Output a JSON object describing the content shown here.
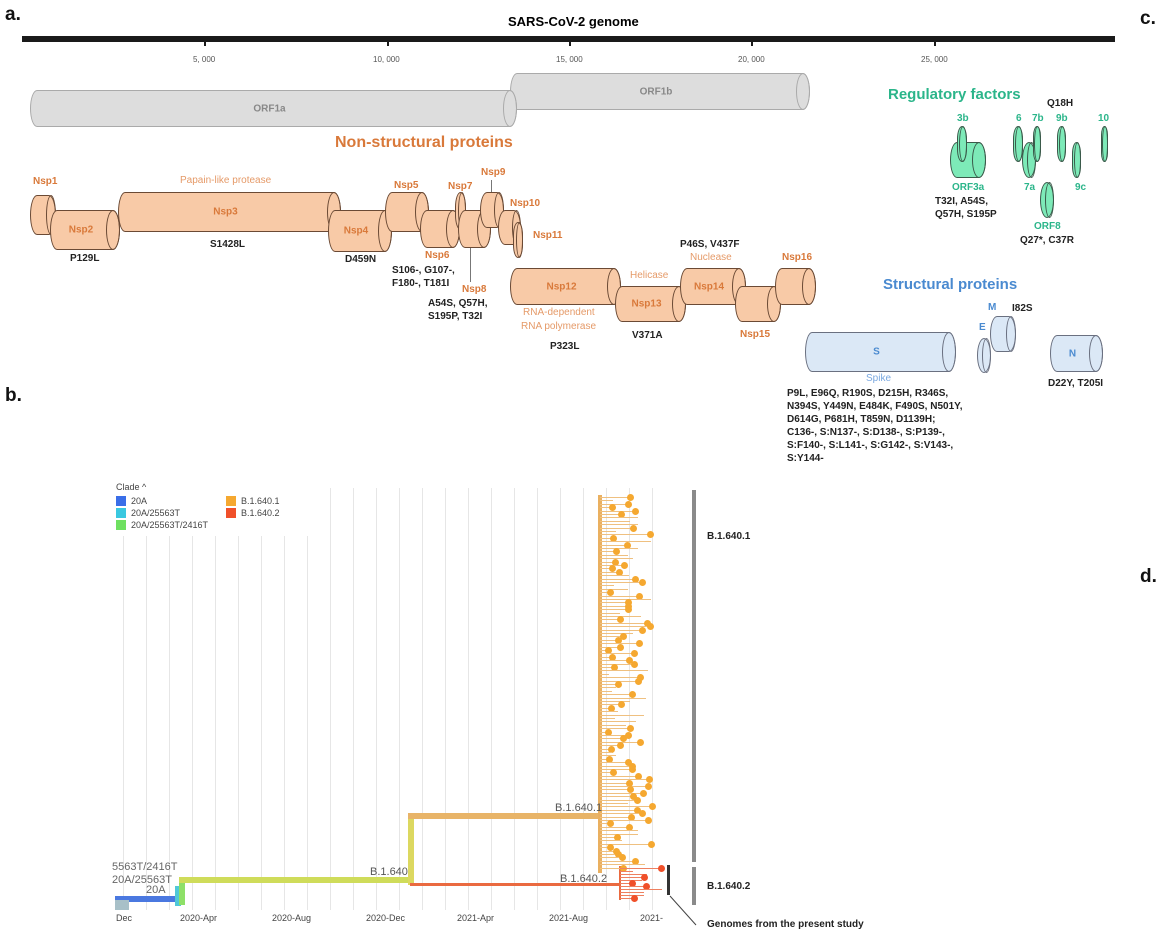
{
  "panel_labels": {
    "a": "a.",
    "b": "b.",
    "c": "c.",
    "d": "d."
  },
  "genome": {
    "title": "SARS-CoV-2 genome",
    "ticks": [
      "5, 000",
      "10, 000",
      "15, 000",
      "20, 000",
      "25, 000"
    ]
  },
  "orf": {
    "orf1a": "ORF1a",
    "orf1b": "ORF1b"
  },
  "nsp": {
    "heading": "Non-structural proteins",
    "proteins": {
      "nsp1": "Nsp1",
      "nsp2": "Nsp2",
      "nsp3": "Nsp3",
      "nsp4": "Nsp4",
      "nsp5": "Nsp5",
      "nsp6": "Nsp6",
      "nsp7": "Nsp7",
      "nsp8": "Nsp8",
      "nsp9": "Nsp9",
      "nsp10": "Nsp10",
      "nsp11": "Nsp11",
      "nsp12": "Nsp12",
      "nsp13": "Nsp13",
      "nsp14": "Nsp14",
      "nsp15": "Nsp15",
      "nsp16": "Nsp16"
    },
    "functions": {
      "papain": "Papain-like protease",
      "rdrp1": "RNA-dependent",
      "rdrp2": "RNA polymerase",
      "helicase": "Helicase",
      "nuclease": "Nuclease"
    },
    "mutations": {
      "nsp2": "P129L",
      "nsp3": "S1428L",
      "nsp4": "D459N",
      "nsp6_1": "S106-, G107-,",
      "nsp6_2": "F180-, T181I",
      "nsp8_1": "A54S, Q57H,",
      "nsp8_2": "S195P, T32I",
      "nsp12": "P323L",
      "nsp13": "V371A",
      "nsp14": "P46S, V437F"
    }
  },
  "regulatory": {
    "heading": "Regulatory factors",
    "labels": {
      "orf3b": "3b",
      "orf3a": "ORF3a",
      "orf6": "6",
      "orf7b": "7b",
      "orf7a": "7a",
      "orf9b": "9b",
      "orf9c": "9c",
      "orf10": "10",
      "orf8": "ORF8"
    },
    "mutations": {
      "q18h": "Q18H",
      "orf3a_1": "T32I, A54S,",
      "orf3a_2": "Q57H, S195P",
      "orf8": "Q27*, C37R"
    }
  },
  "structural": {
    "heading": "Structural proteins",
    "labels": {
      "s": "S",
      "spike": "Spike",
      "e": "E",
      "m": "M",
      "n": "N"
    },
    "mutations": {
      "m": "I82S",
      "n": "D22Y, T205I",
      "spike": [
        "P9L,  E96Q,  R190S,  D215H,  R346S,",
        "N394S, Y449N, E484K, F490S, N501Y,",
        "D614G,    P681H,    T859N,    D1139H;",
        "C136-,   S:N137-,   S:D138-,   S:P139-,",
        "S:F140-,  S:L141-,  S:G142-,  S:V143-,",
        "S:Y144-"
      ]
    }
  },
  "tree": {
    "legend_title": "Clade ^",
    "clades": [
      {
        "name": "20A",
        "color": "#3a6ee8"
      },
      {
        "name": "20A/25563T",
        "color": "#3ac8e0"
      },
      {
        "name": "20A/25563T/2416T",
        "color": "#6ee060"
      },
      {
        "name": "B.1.640.1",
        "color": "#f5a830"
      },
      {
        "name": "B.1.640.2",
        "color": "#f0502a"
      }
    ],
    "axis_ticks": [
      "Dec",
      "2020-Apr",
      "2020-Aug",
      "2020-Dec",
      "2021-Apr",
      "2021-Aug",
      "2021-"
    ],
    "branch_labels": {
      "b1640": "B.1.640",
      "b16401": "B.1.640.1",
      "b16402": "B.1.640.2",
      "root1": "5563T/2416T",
      "root2": "20A/25563T",
      "root3": "20A"
    },
    "brackets": {
      "b16401": "B.1.640.1",
      "b16402": "B.1.640.2"
    },
    "annotation": "Genomes from the present study"
  }
}
